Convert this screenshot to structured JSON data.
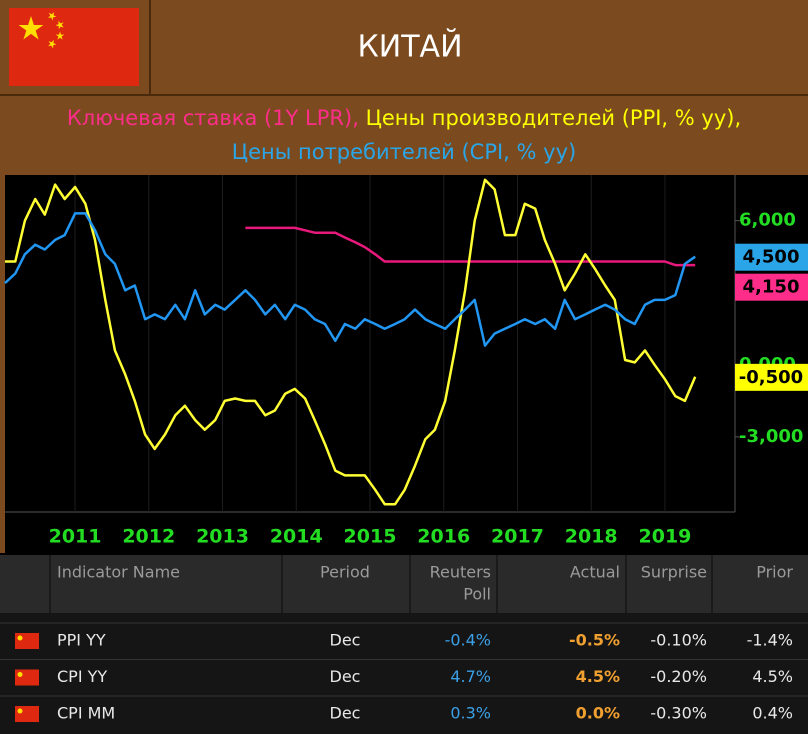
{
  "header": {
    "title": "КИТАЙ"
  },
  "chart_data": {
    "type": "line",
    "x": [
      2010.05,
      2010.19,
      2010.32,
      2010.46,
      2010.59,
      2010.73,
      2010.86,
      2011.0,
      2011.14,
      2011.27,
      2011.41,
      2011.54,
      2011.68,
      2011.81,
      2011.95,
      2012.08,
      2012.22,
      2012.36,
      2012.49,
      2012.63,
      2012.76,
      2012.9,
      2013.03,
      2013.17,
      2013.31,
      2013.44,
      2013.58,
      2013.71,
      2013.85,
      2013.98,
      2014.12,
      2014.25,
      2014.39,
      2014.53,
      2014.66,
      2014.8,
      2014.93,
      2015.07,
      2015.2,
      2015.34,
      2015.47,
      2015.61,
      2015.75,
      2015.88,
      2016.02,
      2016.15,
      2016.29,
      2016.42,
      2016.56,
      2016.69,
      2016.83,
      2016.97,
      2017.1,
      2017.24,
      2017.37,
      2017.51,
      2017.64,
      2017.78,
      2017.92,
      2018.05,
      2018.19,
      2018.32,
      2018.46,
      2018.59,
      2018.73,
      2018.86,
      2019.0,
      2019.14,
      2019.27,
      2019.41
    ],
    "series": [
      {
        "name": "Ключевая ставка (1Y LPR),",
        "color": "#e8197c",
        "label_color": "#ff2d8a",
        "end_label": "4,150",
        "values": [
          null,
          null,
          null,
          null,
          null,
          null,
          null,
          null,
          null,
          null,
          null,
          null,
          null,
          null,
          null,
          null,
          null,
          null,
          null,
          null,
          null,
          null,
          null,
          null,
          5.7,
          5.7,
          5.7,
          5.7,
          5.7,
          5.7,
          5.6,
          5.5,
          5.5,
          5.5,
          5.3,
          5.1,
          4.9,
          4.6,
          4.3,
          4.3,
          4.3,
          4.3,
          4.3,
          4.3,
          4.3,
          4.3,
          4.3,
          4.3,
          4.3,
          4.3,
          4.3,
          4.3,
          4.3,
          4.3,
          4.3,
          4.3,
          4.3,
          4.3,
          4.3,
          4.3,
          4.3,
          4.3,
          4.3,
          4.3,
          4.3,
          4.3,
          4.3,
          4.15,
          4.15,
          4.15
        ]
      },
      {
        "name": "Цены производителей (PPI, % yy),",
        "color": "#ffff33",
        "label_color": "#ffff00",
        "end_label": "-0,500",
        "values": [
          4.3,
          4.3,
          6.0,
          6.9,
          6.25,
          7.5,
          6.9,
          7.4,
          6.7,
          5.2,
          2.7,
          0.6,
          -0.4,
          -1.5,
          -2.9,
          -3.5,
          -2.9,
          -2.1,
          -1.7,
          -2.3,
          -2.7,
          -2.3,
          -1.5,
          -1.4,
          -1.5,
          -1.5,
          -2.1,
          -1.9,
          -1.2,
          -1.0,
          -1.4,
          -2.3,
          -3.3,
          -4.4,
          -4.6,
          -4.6,
          -4.6,
          -5.2,
          -5.8,
          -5.8,
          -5.2,
          -4.2,
          -3.1,
          -2.7,
          -1.5,
          0.6,
          3.1,
          6.0,
          7.7,
          7.3,
          5.4,
          5.4,
          6.7,
          6.5,
          5.2,
          4.2,
          3.1,
          3.8,
          4.6,
          4.0,
          3.3,
          2.7,
          0.2,
          0.1,
          0.6,
          0.0,
          -0.6,
          -1.3,
          -1.5,
          -0.5
        ]
      },
      {
        "name": "Цены потребителей (CPI, % yy)",
        "color": "#2196f3",
        "label_color": "#2aa6e8",
        "end_label": "4,500",
        "values": [
          3.4,
          3.8,
          4.6,
          5.0,
          4.8,
          5.2,
          5.4,
          6.3,
          6.3,
          5.6,
          4.6,
          4.2,
          3.1,
          3.3,
          1.9,
          2.1,
          1.9,
          2.5,
          1.9,
          3.1,
          2.1,
          2.5,
          2.3,
          2.7,
          3.1,
          2.7,
          2.1,
          2.5,
          1.9,
          2.5,
          2.3,
          1.9,
          1.7,
          1.0,
          1.7,
          1.5,
          1.9,
          1.7,
          1.5,
          1.7,
          1.9,
          2.3,
          1.9,
          1.7,
          1.5,
          1.9,
          2.3,
          2.7,
          0.8,
          1.3,
          1.5,
          1.7,
          1.9,
          1.7,
          1.9,
          1.5,
          2.7,
          1.9,
          2.1,
          2.3,
          2.5,
          2.3,
          1.9,
          1.7,
          2.5,
          2.7,
          2.7,
          2.9,
          4.2,
          4.5
        ]
      }
    ],
    "xlim": [
      2010.05,
      2019.95
    ],
    "xticks": [
      2011,
      2012,
      2013,
      2014,
      2015,
      2016,
      2017,
      2018,
      2019
    ],
    "ylim": [
      -6,
      7.9
    ],
    "yticks": [
      {
        "value": 6,
        "label": "6,000"
      },
      {
        "value": 0,
        "label": "0,000"
      },
      {
        "value": -3,
        "label": "-3,000"
      }
    ],
    "grid": true
  },
  "table": {
    "columns": [
      "Indicator Name",
      "Period",
      [
        "Reuters",
        "Poll"
      ],
      "Actual",
      "Surprise",
      "Prior"
    ],
    "rows": [
      [
        "PPI YY",
        "Dec",
        "-0.4%",
        "-0.5%",
        "-0.10%",
        "-1.4%"
      ],
      [
        "CPI YY",
        "Dec",
        "4.7%",
        "4.5%",
        "-0.20%",
        "4.5%"
      ],
      [
        "CPI MM",
        "Dec",
        "0.3%",
        "0.0%",
        "-0.30%",
        "0.4%"
      ]
    ]
  }
}
